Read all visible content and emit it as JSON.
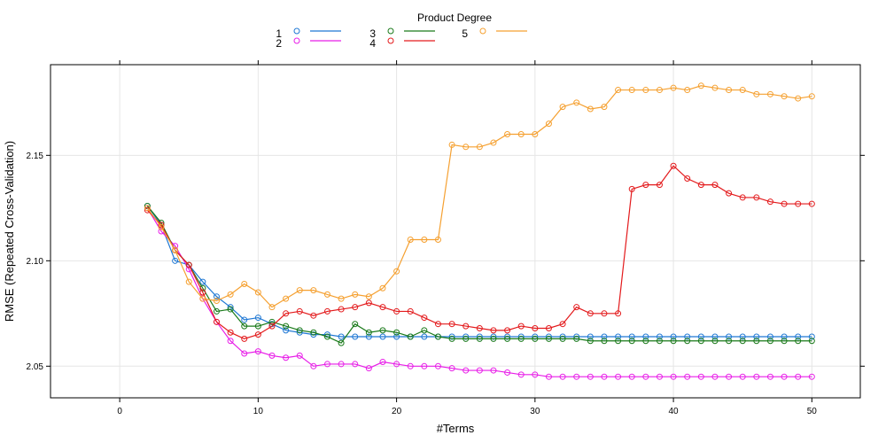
{
  "chart_data": {
    "type": "line",
    "xlabel": "#Terms",
    "ylabel": "RMSE (Repeated Cross-Validation)",
    "xlim": [
      -5,
      53.5
    ],
    "ylim": [
      2.035,
      2.193
    ],
    "x_ticks": [
      0,
      10,
      20,
      30,
      40,
      50
    ],
    "x_tick_labels": [
      "0",
      "10",
      "20",
      "30",
      "40",
      "50"
    ],
    "y_ticks": [
      2.05,
      2.1,
      2.15
    ],
    "y_tick_labels": [
      "2.05",
      "2.10",
      "2.15"
    ],
    "grid": true,
    "legend": {
      "title": "Product Degree",
      "position": "top-center",
      "entries": [
        "1",
        "2",
        "3",
        "4",
        "5"
      ]
    },
    "x": [
      2,
      3,
      4,
      5,
      6,
      7,
      8,
      9,
      10,
      11,
      12,
      13,
      14,
      15,
      16,
      17,
      18,
      19,
      20,
      21,
      22,
      23,
      24,
      25,
      26,
      27,
      28,
      29,
      30,
      31,
      32,
      33,
      34,
      35,
      36,
      37,
      38,
      39,
      40,
      41,
      42,
      43,
      44,
      45,
      46,
      47,
      48,
      49,
      50
    ],
    "series": [
      {
        "name": "1",
        "color": "#1f78d4",
        "values": [
          2.126,
          2.117,
          2.1,
          2.098,
          2.09,
          2.083,
          2.078,
          2.072,
          2.073,
          2.07,
          2.067,
          2.066,
          2.065,
          2.065,
          2.064,
          2.064,
          2.064,
          2.064,
          2.064,
          2.064,
          2.064,
          2.064,
          2.064,
          2.064,
          2.064,
          2.064,
          2.064,
          2.064,
          2.064,
          2.064,
          2.064,
          2.064,
          2.064,
          2.064,
          2.064,
          2.064,
          2.064,
          2.064,
          2.064,
          2.064,
          2.064,
          2.064,
          2.064,
          2.064,
          2.064,
          2.064,
          2.064,
          2.064,
          2.064
        ]
      },
      {
        "name": "2",
        "color": "#e81ee8",
        "values": [
          2.125,
          2.114,
          2.107,
          2.096,
          2.082,
          2.071,
          2.062,
          2.056,
          2.057,
          2.055,
          2.054,
          2.055,
          2.05,
          2.051,
          2.051,
          2.051,
          2.049,
          2.052,
          2.051,
          2.05,
          2.05,
          2.05,
          2.049,
          2.048,
          2.048,
          2.048,
          2.047,
          2.046,
          2.046,
          2.045,
          2.045,
          2.045,
          2.045,
          2.045,
          2.045,
          2.045,
          2.045,
          2.045,
          2.045,
          2.045,
          2.045,
          2.045,
          2.045,
          2.045,
          2.045,
          2.045,
          2.045,
          2.045,
          2.045
        ]
      },
      {
        "name": "3",
        "color": "#1a7a1a",
        "values": [
          2.126,
          2.118,
          2.105,
          2.098,
          2.087,
          2.076,
          2.077,
          2.069,
          2.069,
          2.071,
          2.069,
          2.067,
          2.066,
          2.064,
          2.061,
          2.07,
          2.066,
          2.067,
          2.066,
          2.064,
          2.067,
          2.064,
          2.063,
          2.063,
          2.063,
          2.063,
          2.063,
          2.063,
          2.063,
          2.063,
          2.063,
          2.063,
          2.062,
          2.062,
          2.062,
          2.062,
          2.062,
          2.062,
          2.062,
          2.062,
          2.062,
          2.062,
          2.062,
          2.062,
          2.062,
          2.062,
          2.062,
          2.062,
          2.062
        ]
      },
      {
        "name": "4",
        "color": "#e31a1c",
        "values": [
          2.124,
          2.117,
          2.105,
          2.098,
          2.085,
          2.071,
          2.066,
          2.063,
          2.065,
          2.069,
          2.075,
          2.076,
          2.074,
          2.076,
          2.077,
          2.078,
          2.08,
          2.078,
          2.076,
          2.076,
          2.073,
          2.07,
          2.07,
          2.069,
          2.068,
          2.067,
          2.067,
          2.069,
          2.068,
          2.068,
          2.07,
          2.078,
          2.075,
          2.075,
          2.075,
          2.134,
          2.136,
          2.136,
          2.145,
          2.139,
          2.136,
          2.136,
          2.132,
          2.13,
          2.13,
          2.128,
          2.127,
          2.127,
          2.127
        ]
      },
      {
        "name": "5",
        "color": "#f5a030",
        "values": [
          2.125,
          2.116,
          2.105,
          2.09,
          2.082,
          2.081,
          2.084,
          2.089,
          2.085,
          2.078,
          2.082,
          2.086,
          2.086,
          2.084,
          2.082,
          2.084,
          2.083,
          2.087,
          2.095,
          2.11,
          2.11,
          2.11,
          2.155,
          2.154,
          2.154,
          2.156,
          2.16,
          2.16,
          2.16,
          2.165,
          2.173,
          2.175,
          2.172,
          2.173,
          2.181,
          2.181,
          2.181,
          2.181,
          2.182,
          2.181,
          2.183,
          2.182,
          2.181,
          2.181,
          2.179,
          2.179,
          2.178,
          2.177,
          2.178
        ]
      }
    ]
  }
}
